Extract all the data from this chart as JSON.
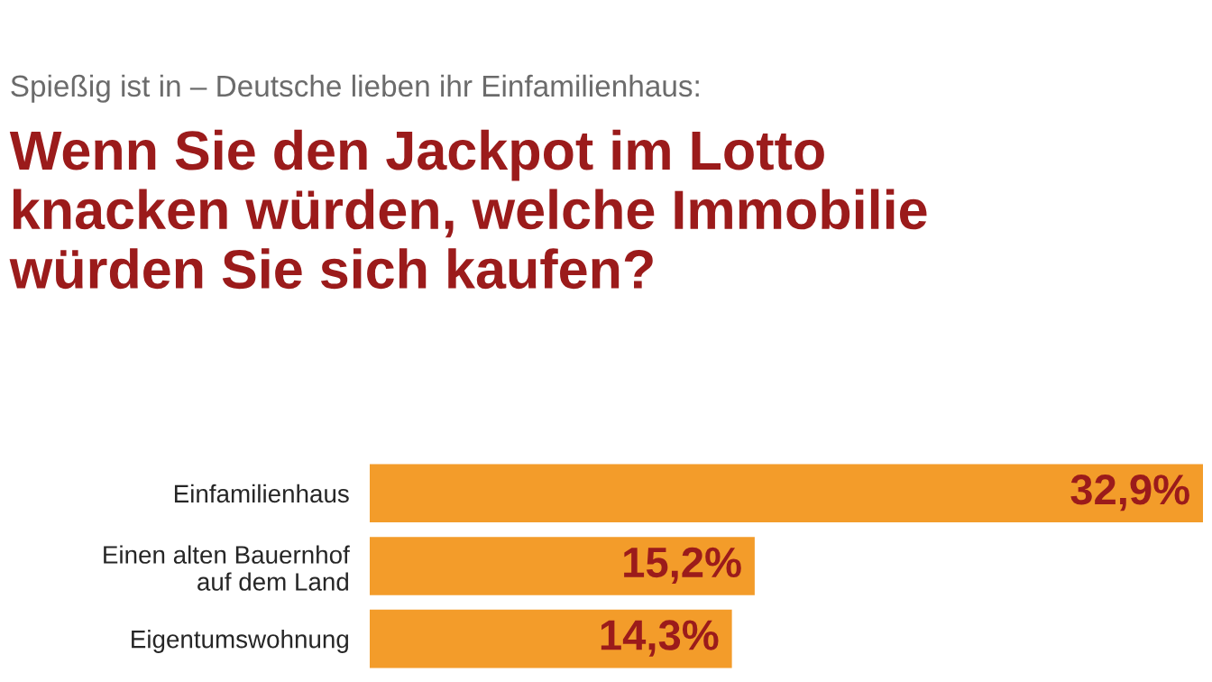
{
  "chart_data": {
    "type": "bar",
    "orientation": "horizontal",
    "subtitle": "Spießig ist in – Deutsche lieben ihr Einfamilienhaus:",
    "title": "Wenn Sie den Jackpot im Lotto\nknacken würden, welche Immobilie\nwürden Sie sich kaufen?",
    "categories": [
      "Einfamilienhaus",
      "Einen alten Bauernhof\nauf dem Land",
      "Eigentumswohnung"
    ],
    "values": [
      32.9,
      15.2,
      14.3
    ],
    "value_labels": [
      "32,9%",
      "15,2%",
      "14,3%"
    ],
    "color": "#f39c2a",
    "tick_labels": "y",
    "grid": false
  }
}
